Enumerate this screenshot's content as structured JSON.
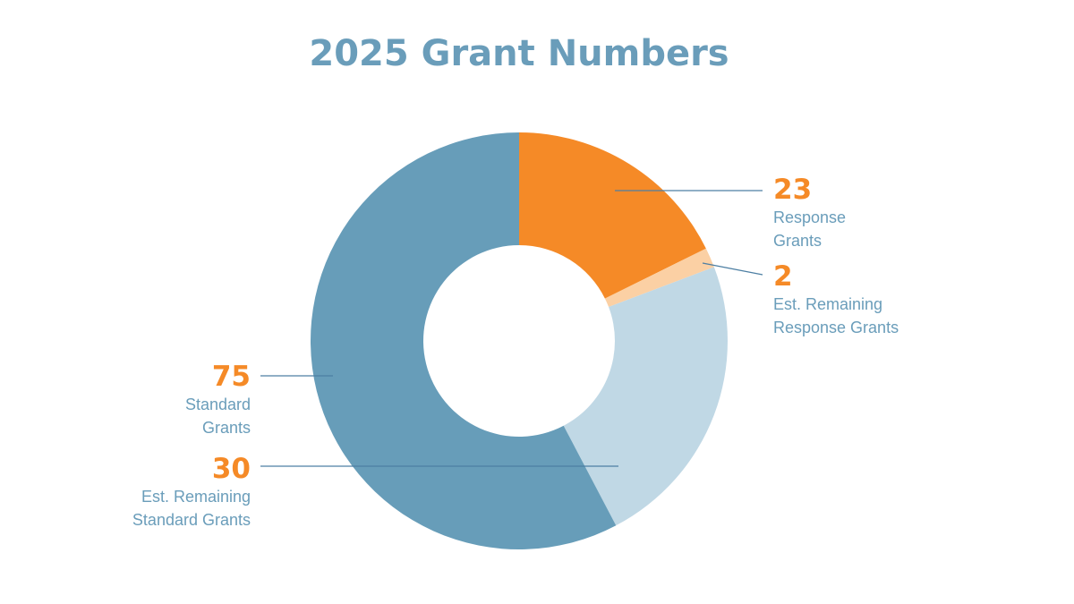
{
  "chart_data": {
    "type": "pie",
    "title": "2025 Grant Numbers",
    "donut": true,
    "slices": [
      {
        "key": "response",
        "value": 23,
        "value_label": "23",
        "label_lines": [
          "Response",
          "Grants"
        ],
        "color": "#f58a27"
      },
      {
        "key": "est-remaining-response",
        "value": 2,
        "value_label": "2",
        "label_lines": [
          "Est. Remaining",
          "Response Grants"
        ],
        "color": "#fbd0a4"
      },
      {
        "key": "est-remaining-standard",
        "value": 30,
        "value_label": "30",
        "label_lines": [
          "Est. Remaining",
          "Standard Grants"
        ],
        "color": "#c0d8e5"
      },
      {
        "key": "standard",
        "value": 75,
        "value_label": "75",
        "label_lines": [
          "Standard",
          "Grants"
        ],
        "color": "#679db9"
      }
    ],
    "colors": {
      "value_text": "#f58a27",
      "label_text": "#6a9dba",
      "title_text": "#6a9dba",
      "leader_line": "#4d7fa3"
    }
  }
}
